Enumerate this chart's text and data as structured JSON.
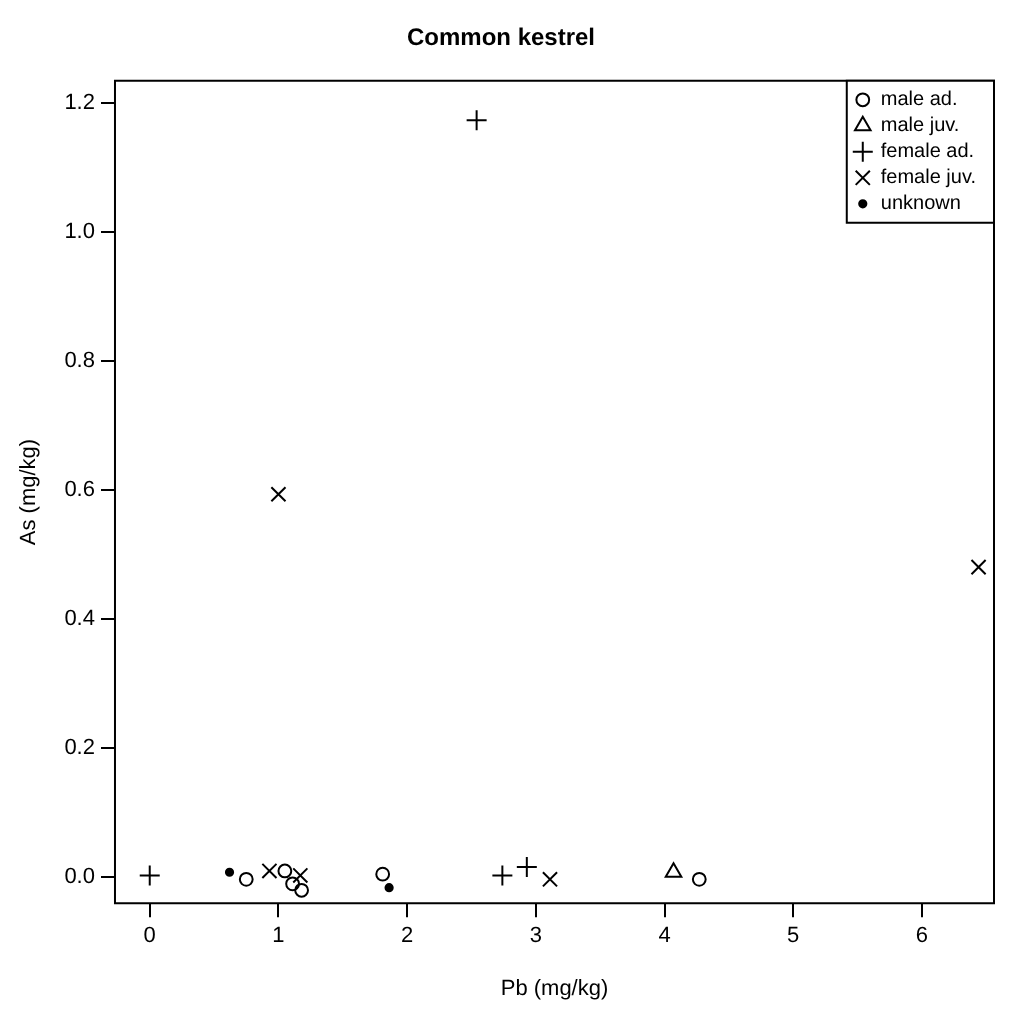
{
  "chart_data": {
    "type": "scatter",
    "title": "Common kestrel",
    "xlabel": "Pb (mg/kg)",
    "ylabel": "As (mg/kg)",
    "xlim": [
      -0.27,
      6.56
    ],
    "xticks": [
      0,
      1,
      2,
      3,
      4,
      5,
      6
    ],
    "ylim": [
      -0.04,
      1.235
    ],
    "yticks": [
      {
        "value": 0,
        "label": "0.0"
      },
      0.2,
      0.4,
      0.6,
      0.8,
      {
        "value": 1,
        "label": "1.0"
      },
      1.2
    ],
    "grid": false,
    "legend": "top right",
    "series": [
      {
        "name": "male ad.",
        "color": "#000000",
        "marker": "circle",
        "x": [
          0.75,
          1.05,
          1.11,
          1.18,
          1.81,
          4.27
        ],
        "values": [
          -0.003,
          0.01,
          -0.01,
          -0.02,
          0.005,
          -0.003
        ]
      },
      {
        "name": "male juv.",
        "color": "#000000",
        "marker": "triangle",
        "x": [
          4.07
        ],
        "values": [
          0.008
        ]
      },
      {
        "name": "female ad.",
        "color": "#000000",
        "marker": "plus",
        "x": [
          0.0,
          2.74,
          2.93,
          2.54
        ],
        "values": [
          0.003,
          0.003,
          0.016,
          1.174
        ]
      },
      {
        "name": "female juv.",
        "color": "#000000",
        "marker": "cross",
        "x": [
          0.93,
          1.17,
          3.11,
          1.0,
          6.44
        ],
        "values": [
          0.01,
          0.003,
          -0.003,
          0.594,
          0.481
        ]
      },
      {
        "name": "unknown",
        "color": "#000000",
        "marker": "dot",
        "x": [
          0.62,
          1.86
        ],
        "values": [
          0.008,
          -0.016
        ]
      }
    ]
  }
}
